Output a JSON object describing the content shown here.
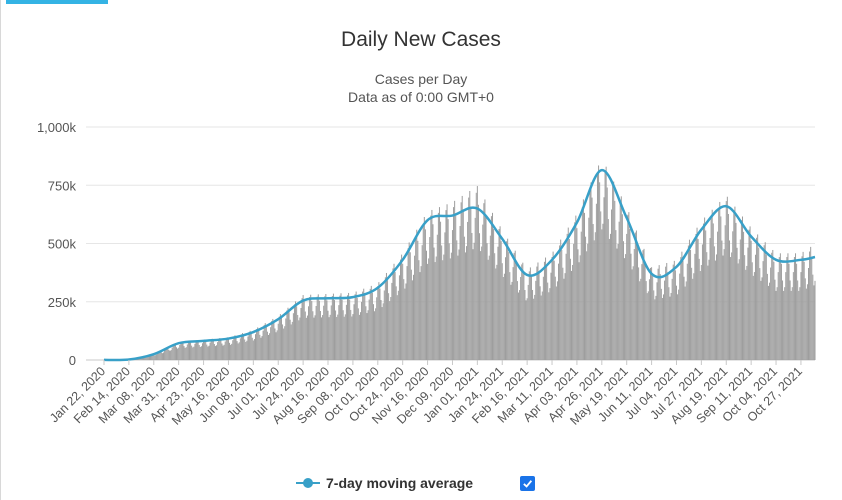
{
  "page": {
    "accent_color": "#34b3e4",
    "frame_color": "#d8d8d8"
  },
  "chart_data": {
    "type": "bar",
    "title": "Daily New Cases",
    "subtitle": "Cases per Day",
    "subtitle2": "Data as of 0:00 GMT+0",
    "x_tick_labels": [
      "Jan 22, 2020",
      "Feb 14, 2020",
      "Mar 08, 2020",
      "Mar 31, 2020",
      "Apr 23, 2020",
      "May 16, 2020",
      "Jun 08, 2020",
      "Jul 01, 2020",
      "Jul 24, 2020",
      "Aug 16, 2020",
      "Sep 08, 2020",
      "Oct 01, 2020",
      "Oct 24, 2020",
      "Nov 16, 2020",
      "Dec 09, 2020",
      "Jan 01, 2021",
      "Jan 24, 2021",
      "Feb 16, 2021",
      "Mar 11, 2021",
      "Apr 03, 2021",
      "Apr 26, 2021",
      "May 19, 2021",
      "Jun 11, 2021",
      "Jul 04, 2021",
      "Jul 27, 2021",
      "Aug 19, 2021",
      "Sep 11, 2021",
      "Oct 04, 2021",
      "Oct 27, 2021"
    ],
    "y_tick_labels": [
      "0",
      "250k",
      "500k",
      "750k",
      "1,000k"
    ],
    "ylim": [
      0,
      1000000
    ],
    "y_ticks": [
      0,
      250000,
      500000,
      750000,
      1000000
    ],
    "grid": true,
    "legend_position": "bottom",
    "bar_color": "#9e9e9e",
    "series": [
      {
        "name": "7-day moving average",
        "type": "line",
        "color": "#38a0c8",
        "checked": true,
        "x": [
          "2020-01-22",
          "2020-02-14",
          "2020-03-08",
          "2020-03-31",
          "2020-04-23",
          "2020-05-16",
          "2020-06-08",
          "2020-07-01",
          "2020-07-24",
          "2020-08-16",
          "2020-09-08",
          "2020-10-01",
          "2020-10-24",
          "2020-11-16",
          "2020-12-09",
          "2021-01-01",
          "2021-01-24",
          "2021-02-16",
          "2021-03-11",
          "2021-04-03",
          "2021-04-26",
          "2021-05-19",
          "2021-06-11",
          "2021-07-04",
          "2021-07-27",
          "2021-08-19",
          "2021-09-11",
          "2021-10-04",
          "2021-10-27",
          "2021-11-09"
        ],
        "values": [
          500,
          2000,
          25000,
          72000,
          82000,
          92000,
          120000,
          175000,
          255000,
          265000,
          270000,
          310000,
          430000,
          600000,
          620000,
          650000,
          520000,
          365000,
          430000,
          590000,
          815000,
          610000,
          370000,
          400000,
          560000,
          660000,
          530000,
          430000,
          430000,
          442000
        ]
      }
    ],
    "daily": {
      "x": [
        "2020-01-22",
        "2020-02-14",
        "2020-03-08",
        "2020-03-31",
        "2020-04-23",
        "2020-05-16",
        "2020-06-08",
        "2020-07-01",
        "2020-07-24",
        "2020-08-16",
        "2020-09-08",
        "2020-10-01",
        "2020-10-24",
        "2020-11-16",
        "2020-12-09",
        "2021-01-01",
        "2021-01-24",
        "2021-02-16",
        "2021-03-11",
        "2021-04-03",
        "2021-04-26",
        "2021-05-19",
        "2021-06-11",
        "2021-07-04",
        "2021-07-27",
        "2021-08-19",
        "2021-09-11",
        "2021-10-04",
        "2021-10-27",
        "2021-11-09"
      ],
      "values": [
        500,
        2500,
        28000,
        78000,
        88000,
        98000,
        130000,
        190000,
        280000,
        285000,
        290000,
        330000,
        460000,
        640000,
        680000,
        750000,
        560000,
        390000,
        460000,
        630000,
        870000,
        660000,
        400000,
        430000,
        600000,
        710000,
        570000,
        460000,
        460000,
        500000
      ]
    }
  },
  "legend": {
    "label": "7-day moving average",
    "checkbox_color": "#1a73e8"
  }
}
